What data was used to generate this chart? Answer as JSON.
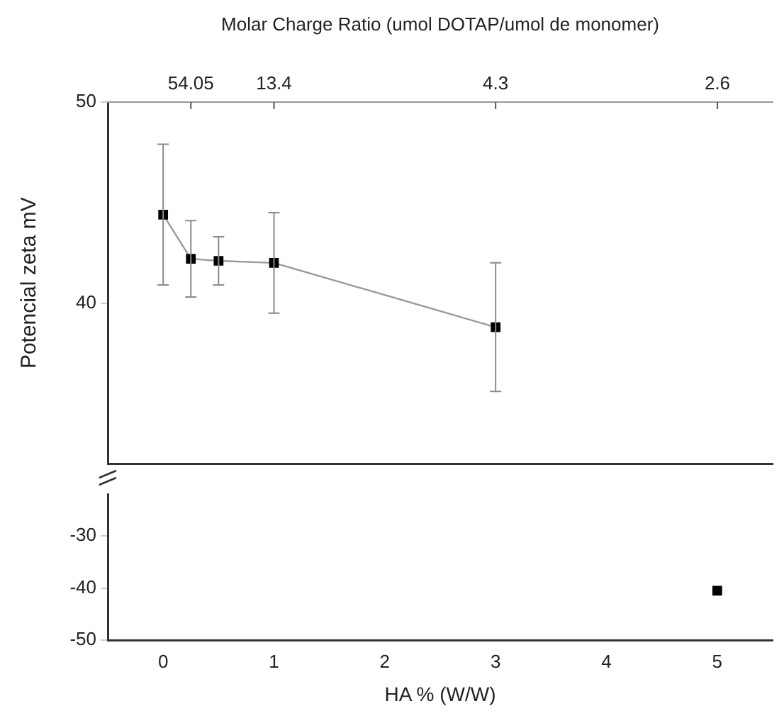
{
  "chart_data": [
    {
      "type": "line",
      "x2label": "Molar Charge Ratio (umol DOTAP/umol de monomer)",
      "ylabel": "Potencial zeta mV",
      "xlim": [
        -0.5,
        5.5
      ],
      "annotations": [
        {
          "text": "54.05",
          "x": 0.25
        },
        {
          "text": "13.4",
          "x": 1
        },
        {
          "text": "4.3",
          "x": 3
        },
        "2.6"
      ],
      "ylim": [
        32,
        50
      ],
      "yticks": [
        40,
        50
      ],
      "tick_labels": "y",
      "marker": "square",
      "grid": false,
      "legend": false,
      "series": [
        {
          "color": "#000000",
          "x": [
            0,
            0.25,
            0.5,
            1,
            3
          ],
          "values": [
            44.4,
            42.2,
            42.1,
            42.0,
            38.8
          ],
          "errors": [
            3.5,
            1.9,
            1.2,
            2.5,
            3.2
          ]
        }
      ]
    },
    {
      "type": "line",
      "xlabel": "HA % (W/W)",
      "xlim": [
        -0.5,
        5.5
      ],
      "xticks": [
        0,
        1,
        2,
        3,
        4,
        5
      ],
      "ylim": [
        -50,
        -22
      ],
      "yticks": [
        -50,
        -40,
        -30
      ],
      "marker": "square",
      "grid": false,
      "legend": false,
      "series": [
        {
          "color": "#000000",
          "x": [
            5
          ],
          "values": [
            -40.5
          ]
        }
      ]
    }
  ]
}
